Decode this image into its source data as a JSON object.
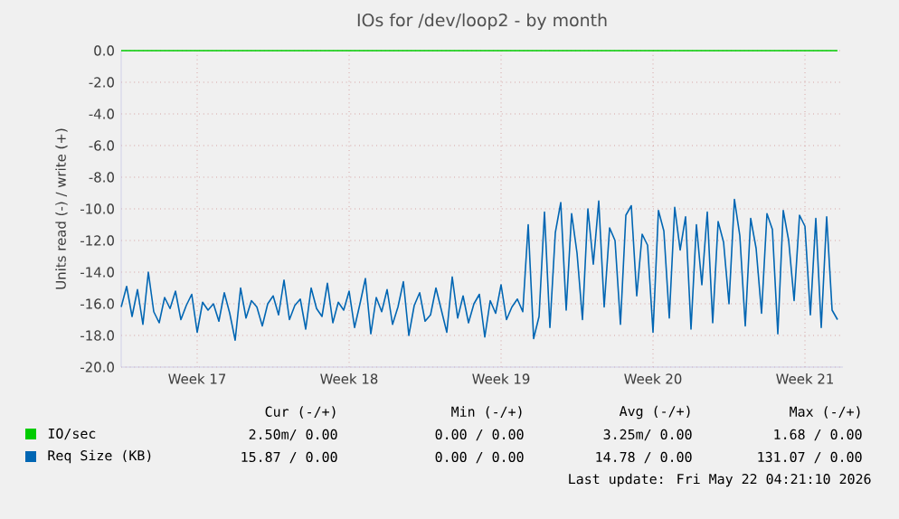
{
  "chart_data": {
    "type": "line",
    "title": "IOs for /dev/loop2 - by month",
    "ylabel": "Units read (-) / write (+)",
    "categories": [
      null,
      null,
      null,
      null,
      null,
      null,
      null,
      null,
      null,
      null,
      null,
      null,
      null,
      null,
      "Week 17",
      null,
      null,
      null,
      null,
      null,
      null,
      null,
      null,
      null,
      null,
      null,
      null,
      null,
      null,
      null,
      null,
      null,
      null,
      null,
      null,
      null,
      null,
      null,
      null,
      null,
      null,
      null,
      "Week 18",
      null,
      null,
      null,
      null,
      null,
      null,
      null,
      null,
      null,
      null,
      null,
      null,
      null,
      null,
      null,
      null,
      null,
      null,
      null,
      null,
      null,
      null,
      null,
      null,
      null,
      null,
      null,
      "Week 19",
      null,
      null,
      null,
      null,
      null,
      null,
      null,
      null,
      null,
      null,
      null,
      null,
      null,
      null,
      null,
      null,
      null,
      null,
      null,
      null,
      null,
      null,
      null,
      null,
      null,
      null,
      null,
      "Week 20",
      null,
      null,
      null,
      null,
      null,
      null,
      null,
      null,
      null,
      null,
      null,
      null,
      null,
      null,
      null,
      null,
      null,
      null,
      null,
      null,
      null,
      null,
      null,
      null,
      null,
      null,
      null,
      "Week 21",
      null,
      null,
      null,
      null,
      null,
      null
    ],
    "ylim": [
      -20,
      0
    ],
    "yticks": [
      {
        "value": 0,
        "label": "0.0"
      },
      {
        "value": -2,
        "label": "-2.0"
      },
      {
        "value": -4,
        "label": "-4.0"
      },
      {
        "value": -6,
        "label": "-6.0"
      },
      {
        "value": -8,
        "label": "-8.0"
      },
      {
        "value": -10,
        "label": "-10.0"
      },
      {
        "value": -12,
        "label": "-12.0"
      },
      {
        "value": -14,
        "label": "-14.0"
      },
      {
        "value": -16,
        "label": "-16.0"
      },
      {
        "value": -18,
        "label": "-18.0"
      },
      {
        "value": -20,
        "label": "-20.0"
      }
    ],
    "grid": true,
    "legend": "bottom",
    "series": [
      {
        "name": "IO/sec",
        "color": "#00cc00",
        "values": [
          0,
          0,
          0,
          0,
          0,
          0,
          0,
          0,
          0,
          0,
          0,
          0,
          0,
          0,
          0,
          0,
          0,
          0,
          0,
          0,
          0,
          0,
          0,
          0,
          0,
          0,
          0,
          0,
          0,
          0,
          0,
          0,
          0,
          0,
          0,
          0,
          0,
          0,
          0,
          0,
          0,
          0,
          0,
          0,
          0,
          0,
          0,
          0,
          0,
          0,
          0,
          0,
          0,
          0,
          0,
          0,
          0,
          0,
          0,
          0,
          0,
          0,
          0,
          0,
          0,
          0,
          0,
          0,
          0,
          0,
          0,
          0,
          0,
          0,
          0,
          0,
          0,
          0,
          0,
          0,
          0,
          0,
          0,
          0,
          0,
          0,
          0,
          0,
          0,
          0,
          0,
          0,
          0,
          0,
          0,
          0,
          0,
          0,
          0,
          0,
          0,
          0,
          0,
          0,
          0,
          0,
          0,
          0,
          0,
          0,
          0,
          0,
          0,
          0,
          0,
          0,
          0,
          0,
          0,
          0,
          0,
          0,
          0,
          0,
          0,
          0,
          0,
          0,
          0,
          0,
          0,
          0,
          0
        ]
      },
      {
        "name": "Req Size (KB)",
        "color": "#0066b3",
        "values": [
          -16.2,
          -14.9,
          -16.8,
          -15.1,
          -17.3,
          -14.0,
          -16.5,
          -17.2,
          -15.6,
          -16.3,
          -15.2,
          -17.0,
          -16.1,
          -15.4,
          -17.8,
          -15.9,
          -16.4,
          -16.0,
          -17.1,
          -15.3,
          -16.6,
          -18.3,
          -15.0,
          -16.9,
          -15.8,
          -16.2,
          -17.4,
          -16.0,
          -15.5,
          -16.7,
          -14.5,
          -17.0,
          -16.1,
          -15.7,
          -17.6,
          -15.0,
          -16.3,
          -16.8,
          -14.7,
          -17.2,
          -15.9,
          -16.4,
          -15.2,
          -17.5,
          -16.0,
          -14.4,
          -17.9,
          -15.6,
          -16.5,
          -15.1,
          -17.3,
          -16.2,
          -14.6,
          -18.0,
          -16.1,
          -15.3,
          -17.1,
          -16.7,
          -15.0,
          -16.4,
          -17.8,
          -14.3,
          -16.9,
          -15.5,
          -17.2,
          -16.0,
          -15.4,
          -18.1,
          -15.8,
          -16.6,
          -14.8,
          -17.0,
          -16.2,
          -15.7,
          -16.5,
          -11.0,
          -18.2,
          -16.8,
          -10.2,
          -17.5,
          -11.5,
          -9.6,
          -16.4,
          -10.3,
          -12.8,
          -17.0,
          -10.0,
          -13.5,
          -9.5,
          -16.2,
          -11.2,
          -12.0,
          -17.3,
          -10.4,
          -9.8,
          -15.5,
          -11.6,
          -12.3,
          -17.8,
          -10.1,
          -11.4,
          -16.9,
          -9.9,
          -12.6,
          -10.5,
          -17.6,
          -11.0,
          -14.8,
          -10.2,
          -17.2,
          -10.8,
          -12.1,
          -16.0,
          -9.4,
          -11.7,
          -17.4,
          -10.6,
          -12.5,
          -16.6,
          -10.3,
          -11.3,
          -17.9,
          -10.1,
          -12.0,
          -15.8,
          -10.4,
          -11.1,
          -16.7,
          -10.6,
          -17.5,
          -10.5,
          -16.4,
          -17.0
        ]
      }
    ],
    "annotations": [
      "Cur (-/+)",
      "Min (-/+)",
      "Avg (-/+)",
      "Max (-/+)",
      "2.50m/ 0.00",
      "0.00 / 0.00",
      "3.25m/ 0.00",
      "1.68 / 0.00",
      "15.87 / 0.00",
      "0.00 / 0.00",
      "14.78 / 0.00",
      "131.07 / 0.00",
      "Last update: Fri May 22 04:21:10 2026"
    ]
  }
}
